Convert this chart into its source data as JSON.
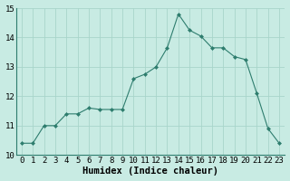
{
  "x": [
    0,
    1,
    2,
    3,
    4,
    5,
    6,
    7,
    8,
    9,
    10,
    11,
    12,
    13,
    14,
    15,
    16,
    17,
    18,
    19,
    20,
    21,
    22,
    23
  ],
  "y": [
    10.4,
    10.4,
    11.0,
    11.0,
    11.4,
    11.4,
    11.6,
    11.55,
    11.55,
    11.55,
    12.6,
    12.75,
    13.0,
    13.65,
    14.8,
    14.25,
    14.05,
    13.65,
    13.65,
    13.35,
    13.25,
    12.1,
    10.9,
    10.4
  ],
  "line_color": "#2e7d6e",
  "marker": "D",
  "marker_size": 2,
  "bg_color": "#c8ebe3",
  "grid_color": "#a8d5ca",
  "xlabel": "Humidex (Indice chaleur)",
  "xlabel_fontsize": 7.5,
  "tick_fontsize": 6.5,
  "ylim": [
    10,
    15
  ],
  "xlim_min": -0.5,
  "xlim_max": 23.5,
  "yticks": [
    10,
    11,
    12,
    13,
    14,
    15
  ],
  "xticks": [
    0,
    1,
    2,
    3,
    4,
    5,
    6,
    7,
    8,
    9,
    10,
    11,
    12,
    13,
    14,
    15,
    16,
    17,
    18,
    19,
    20,
    21,
    22,
    23
  ]
}
